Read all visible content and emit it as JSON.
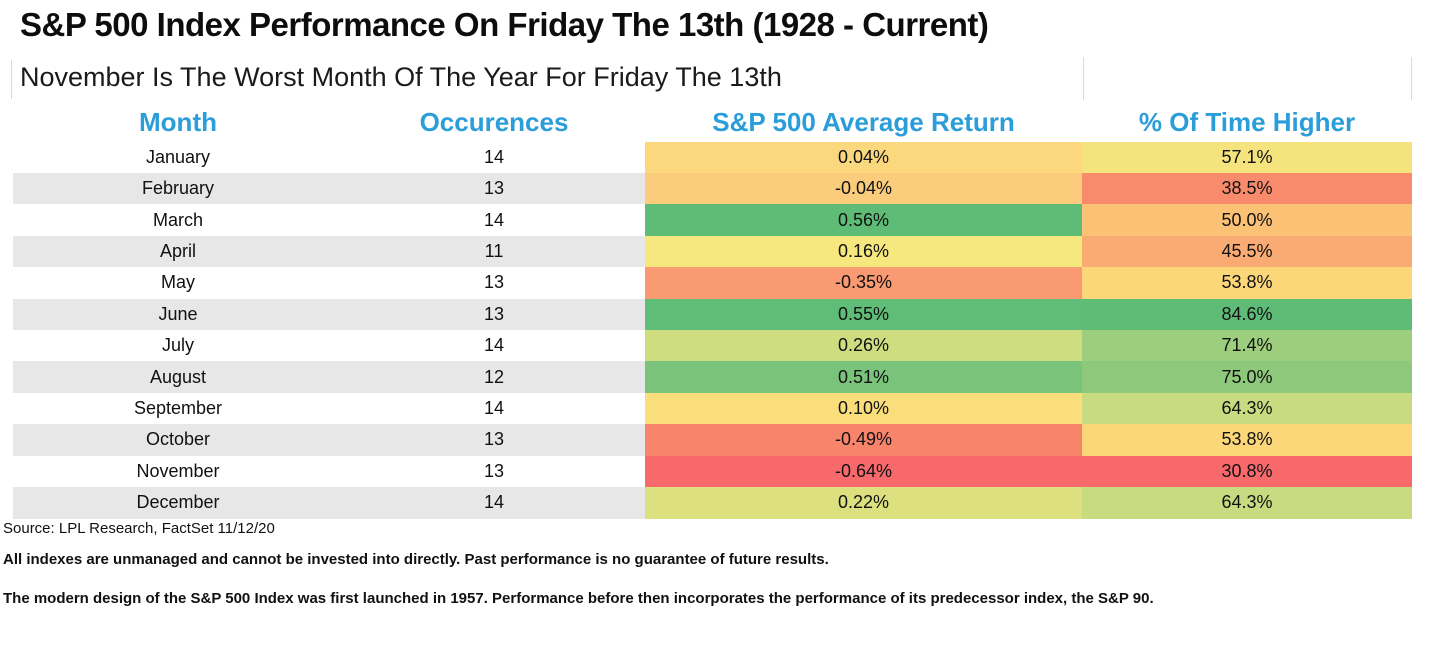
{
  "title": "S&P 500 Index Performance On Friday The 13th (1928 - Current)",
  "subtitle": "November Is The Worst Month Of The Year For Friday The 13th",
  "colors": {
    "header_text": "#2b9ed9",
    "row_stripe": "#e7e7e7",
    "gridline": "#d9d9d9",
    "scale_red": "#f8696b",
    "scale_yellow": "#ffeb84",
    "scale_green": "#63be7b"
  },
  "footer": {
    "source": "Source: LPL Research, FactSet 11/12/20",
    "disclaimer1": "All indexes are unmanaged and cannot be invested into directly. Past performance is no guarantee of future results.",
    "disclaimer2": "The modern design of the S&P 500 Index was first launched in 1957. Performance before then incorporates the performance of its predecessor index, the S&P 90."
  },
  "chart_data": {
    "type": "table",
    "columns": [
      "Month",
      "Occurences",
      "S&P 500 Average Return",
      "% Of Time Higher"
    ],
    "rows": [
      {
        "month": "January",
        "occurences": "14",
        "avg_return": "0.04%",
        "pct_higher": "57.1%",
        "return_color": "#fbd77d",
        "pct_color": "#f5e37e"
      },
      {
        "month": "February",
        "occurences": "13",
        "avg_return": "-0.04%",
        "pct_higher": "38.5%",
        "return_color": "#facc7c",
        "pct_color": "#f98b6d"
      },
      {
        "month": "March",
        "occurences": "14",
        "avg_return": "0.56%",
        "pct_higher": "50.0%",
        "return_color": "#5ebc76",
        "pct_color": "#fbc276"
      },
      {
        "month": "April",
        "occurences": "11",
        "avg_return": "0.16%",
        "pct_higher": "45.5%",
        "return_color": "#f6e77e",
        "pct_color": "#faab73"
      },
      {
        "month": "May",
        "occurences": "13",
        "avg_return": "-0.35%",
        "pct_higher": "53.8%",
        "return_color": "#f99a73",
        "pct_color": "#fcd77a"
      },
      {
        "month": "June",
        "occurences": "13",
        "avg_return": "0.55%",
        "pct_higher": "84.6%",
        "return_color": "#60bd77",
        "pct_color": "#5fbc77"
      },
      {
        "month": "July",
        "occurences": "14",
        "avg_return": "0.26%",
        "pct_higher": "71.4%",
        "return_color": "#cedd80",
        "pct_color": "#9cce7d"
      },
      {
        "month": "August",
        "occurences": "12",
        "avg_return": "0.51%",
        "pct_higher": "75.0%",
        "return_color": "#79c47a",
        "pct_color": "#8ec97b"
      },
      {
        "month": "September",
        "occurences": "14",
        "avg_return": "0.10%",
        "pct_higher": "64.3%",
        "return_color": "#fbde7c",
        "pct_color": "#c8db80"
      },
      {
        "month": "October",
        "occurences": "13",
        "avg_return": "-0.49%",
        "pct_higher": "53.8%",
        "return_color": "#f9846c",
        "pct_color": "#fcd77a"
      },
      {
        "month": "November",
        "occurences": "13",
        "avg_return": "-0.64%",
        "pct_higher": "30.8%",
        "return_color": "#f8696b",
        "pct_color": "#f8696b"
      },
      {
        "month": "December",
        "occurences": "14",
        "avg_return": "0.22%",
        "pct_higher": "64.3%",
        "return_color": "#dce07f",
        "pct_color": "#c8db80"
      }
    ]
  }
}
